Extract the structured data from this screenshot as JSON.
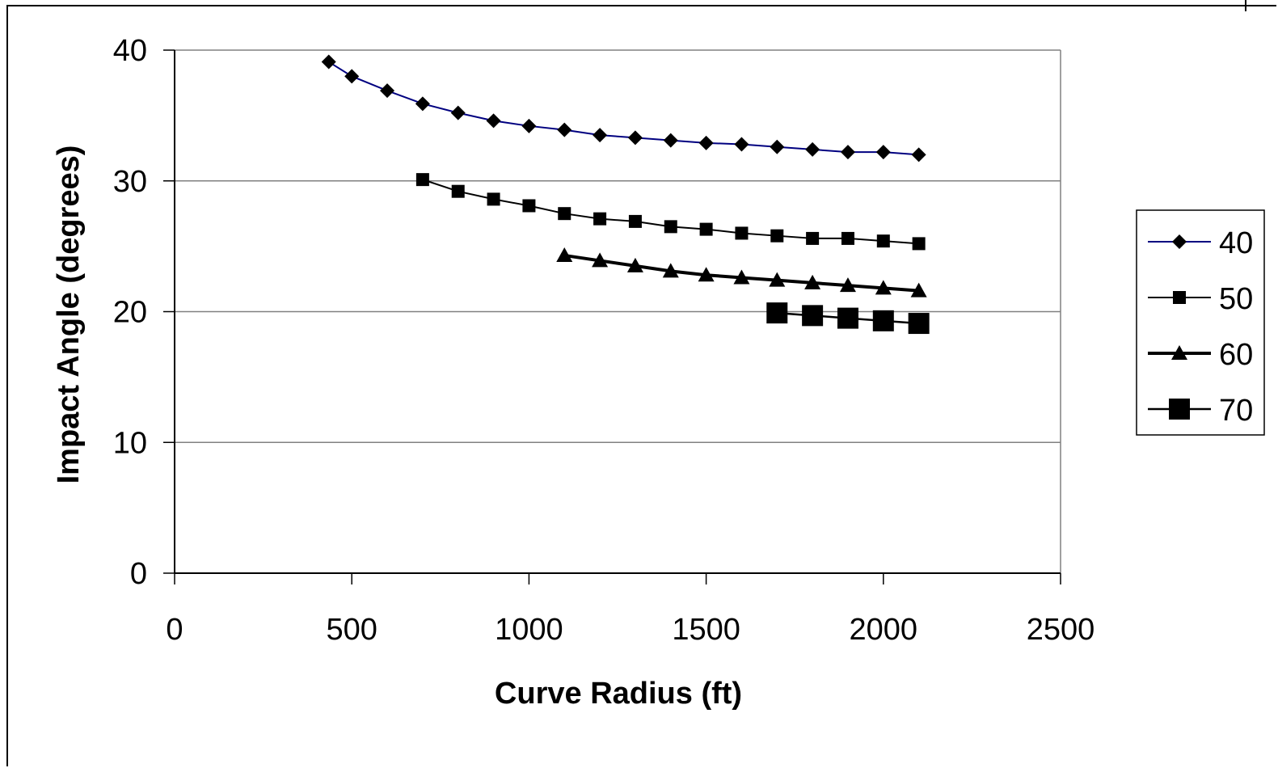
{
  "chart_data": {
    "type": "line",
    "title": "",
    "xlabel": "Curve Radius (ft)",
    "ylabel": "Impact Angle (degrees)",
    "xlim": [
      0,
      2500
    ],
    "ylim": [
      0,
      40
    ],
    "x_ticks": [
      "0",
      "500",
      "1000",
      "1500",
      "2000",
      "2500"
    ],
    "y_ticks": [
      "0",
      "10",
      "20",
      "30",
      "40"
    ],
    "grid": "horizontal",
    "legend_position": "right",
    "series": [
      {
        "name": "40",
        "marker": "diamond",
        "color": "#000080",
        "x": [
          435,
          500,
          600,
          700,
          800,
          900,
          1000,
          1100,
          1200,
          1300,
          1400,
          1500,
          1600,
          1700,
          1800,
          1900,
          2000,
          2100
        ],
        "y": [
          39.1,
          38.0,
          36.9,
          35.9,
          35.2,
          34.6,
          34.2,
          33.9,
          33.5,
          33.3,
          33.1,
          32.9,
          32.8,
          32.6,
          32.4,
          32.2,
          32.2,
          32.0
        ]
      },
      {
        "name": "50",
        "marker": "square",
        "color": "#000000",
        "x": [
          700,
          800,
          900,
          1000,
          1100,
          1200,
          1300,
          1400,
          1500,
          1600,
          1700,
          1800,
          1900,
          2000,
          2100
        ],
        "y": [
          30.1,
          29.2,
          28.6,
          28.1,
          27.5,
          27.1,
          26.9,
          26.5,
          26.3,
          26.0,
          25.8,
          25.6,
          25.6,
          25.4,
          25.2
        ]
      },
      {
        "name": "60",
        "marker": "triangle",
        "color": "#000000",
        "x": [
          1100,
          1200,
          1300,
          1400,
          1500,
          1600,
          1700,
          1800,
          1900,
          2000,
          2100
        ],
        "y": [
          24.3,
          23.9,
          23.5,
          23.1,
          22.8,
          22.6,
          22.4,
          22.2,
          22.0,
          21.8,
          21.6
        ]
      },
      {
        "name": "70",
        "marker": "large-square",
        "color": "#000000",
        "x": [
          1700,
          1800,
          1900,
          2000,
          2100
        ],
        "y": [
          19.9,
          19.7,
          19.5,
          19.3,
          19.1
        ]
      }
    ]
  }
}
